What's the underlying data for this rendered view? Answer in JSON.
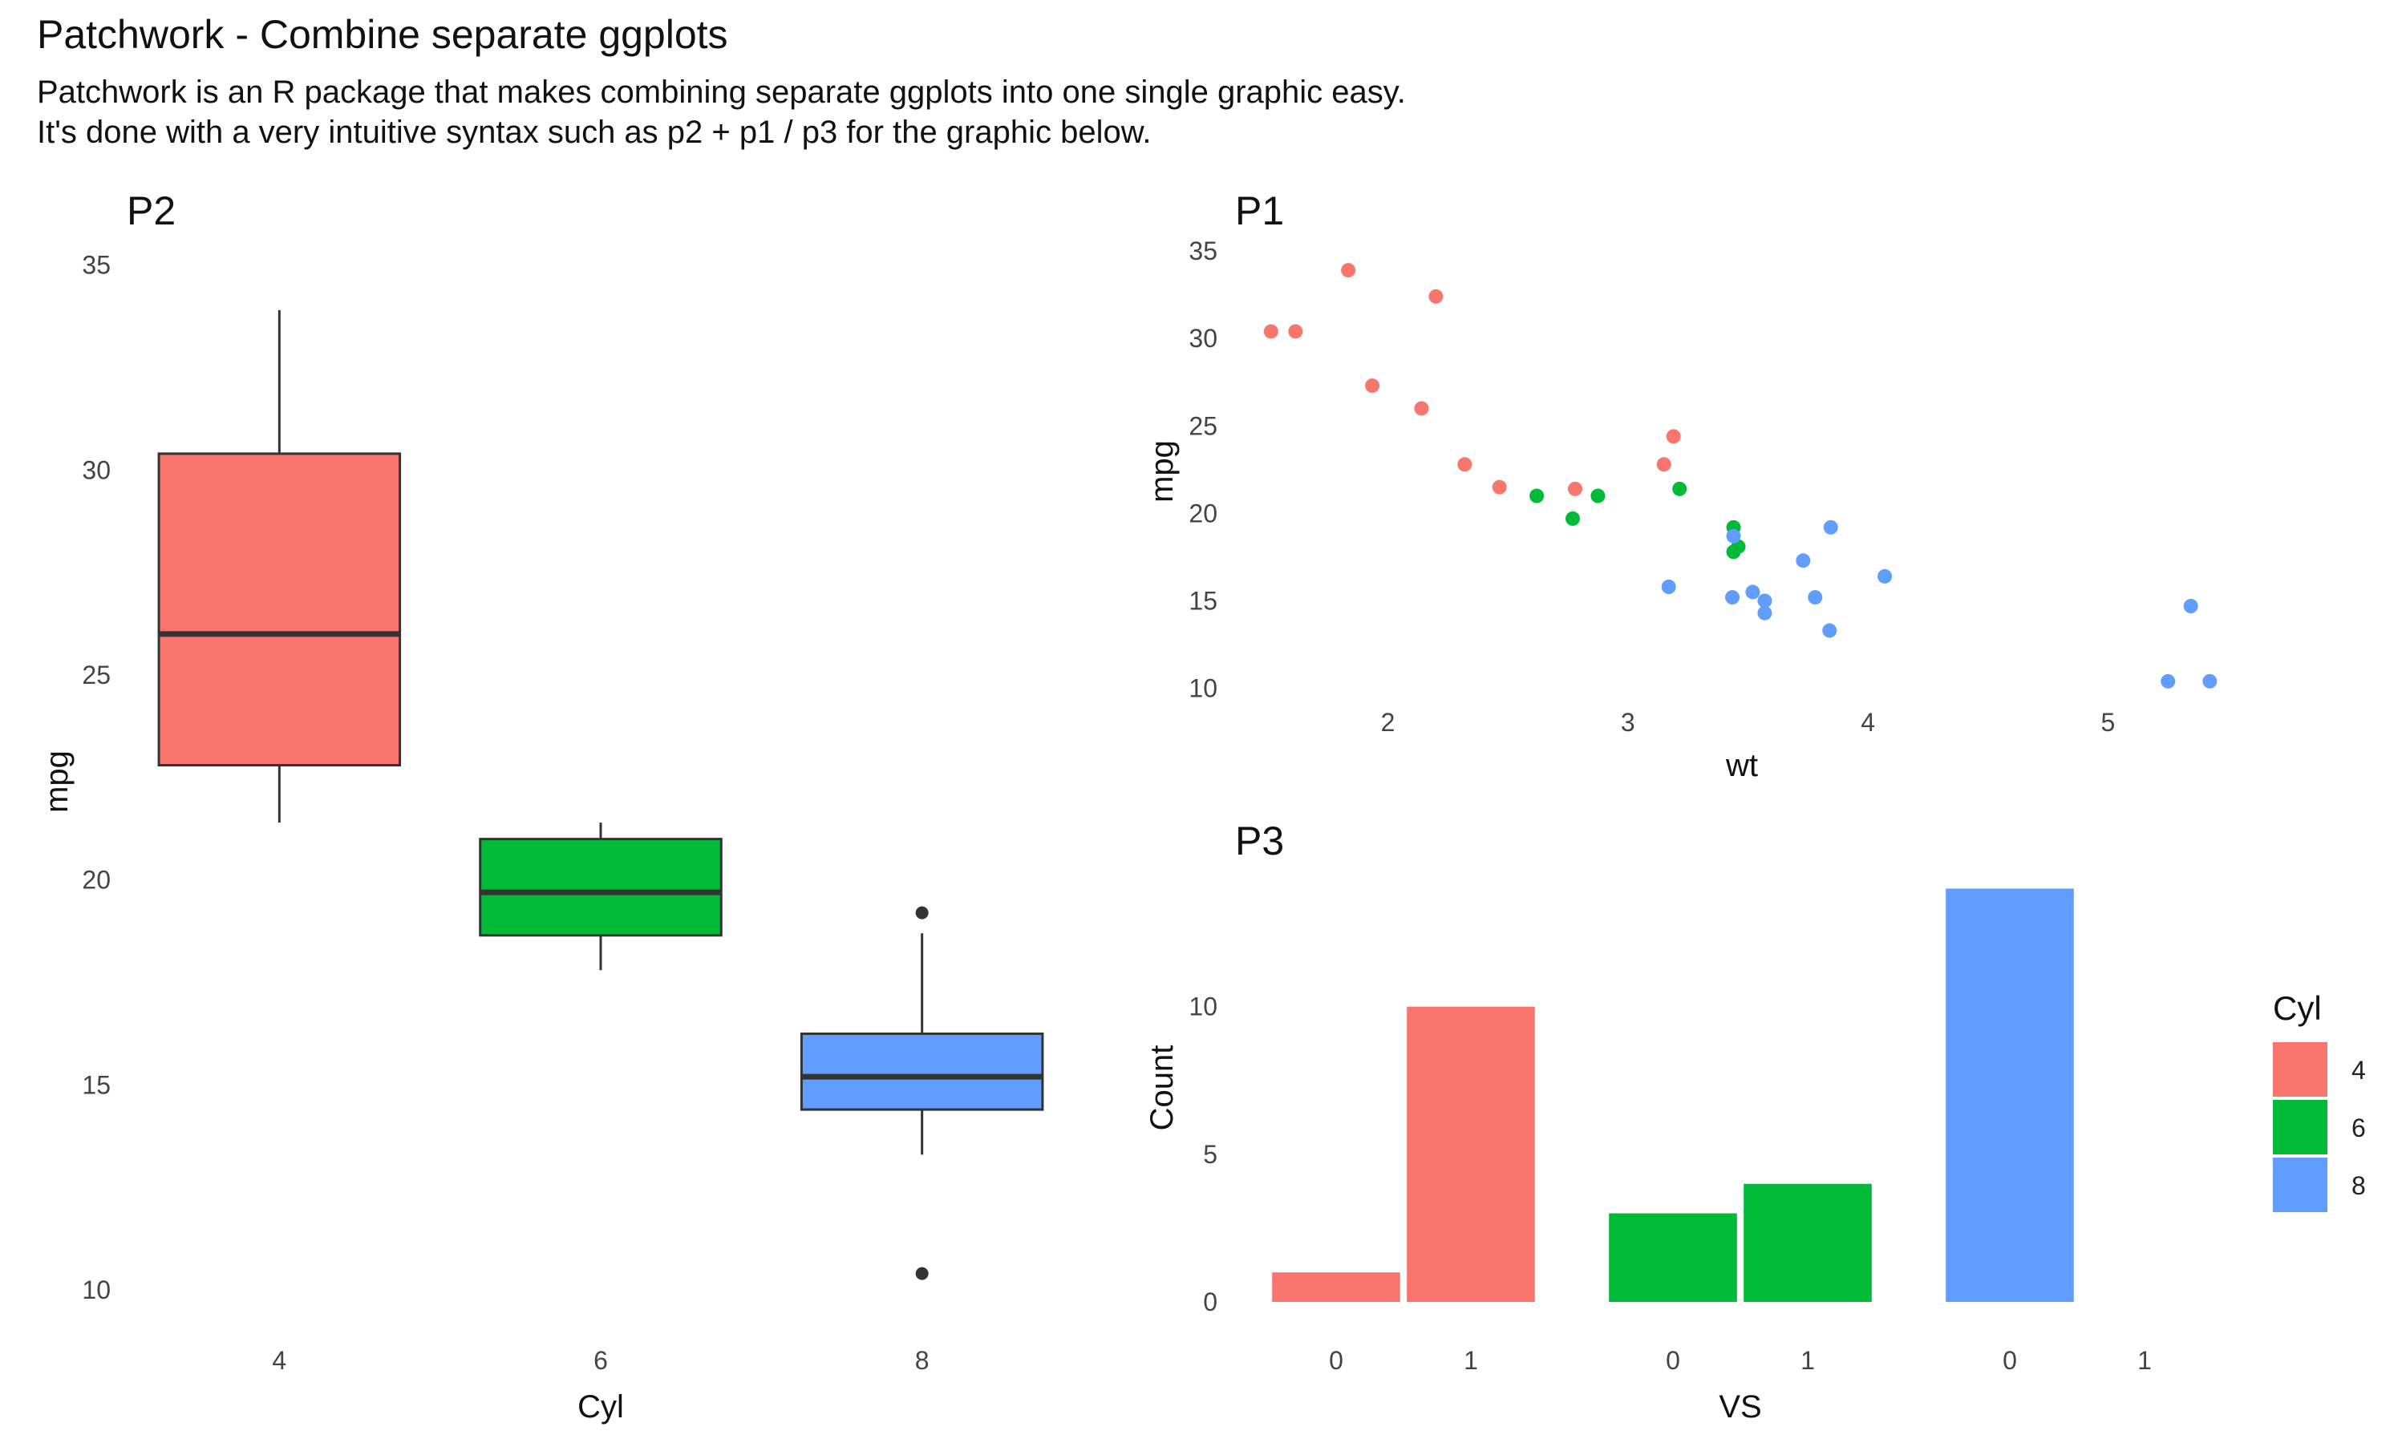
{
  "header": {
    "title": "Patchwork - Combine separate ggplots",
    "subtitle_line1": "Patchwork is an R package that makes combining separate ggplots into one single graphic easy.",
    "subtitle_line2": "It's done with a very intuitive syntax such as p2 + p1 / p3 for the graphic below."
  },
  "colors": {
    "cyl4": "#F8766D",
    "cyl6": "#00BA38",
    "cyl8": "#619CFF",
    "outline": "#333333"
  },
  "chart_data": [
    {
      "id": "p2",
      "type": "box",
      "title": "P2",
      "xlabel": "Cyl",
      "ylabel": "mpg",
      "categories": [
        "4",
        "6",
        "8"
      ],
      "ylim": [
        9.2,
        35.6
      ],
      "yticks": [
        10,
        15,
        20,
        25,
        30,
        35
      ],
      "boxes": [
        {
          "category": "4",
          "min": 21.4,
          "q1": 22.8,
          "median": 26.0,
          "q3": 30.4,
          "max": 33.9,
          "outliers": []
        },
        {
          "category": "6",
          "min": 17.8,
          "q1": 18.65,
          "median": 19.7,
          "q3": 21.0,
          "max": 21.4,
          "outliers": []
        },
        {
          "category": "8",
          "min": 13.3,
          "q1": 14.4,
          "median": 15.2,
          "q3": 16.25,
          "max": 18.7,
          "outliers": [
            10.4,
            19.2
          ]
        }
      ]
    },
    {
      "id": "p1",
      "type": "scatter",
      "title": "P1",
      "xlabel": "wt",
      "ylabel": "mpg",
      "xlim": [
        1.35,
        5.6
      ],
      "ylim": [
        9.2,
        35.6
      ],
      "xticks": [
        2,
        3,
        4,
        5
      ],
      "yticks": [
        10,
        15,
        20,
        25,
        30,
        35
      ],
      "series": [
        {
          "cyl": "4",
          "points": [
            [
              2.32,
              22.8
            ],
            [
              3.19,
              24.4
            ],
            [
              3.15,
              22.8
            ],
            [
              2.2,
              32.4
            ],
            [
              1.615,
              30.4
            ],
            [
              1.835,
              33.9
            ],
            [
              2.465,
              21.5
            ],
            [
              1.935,
              27.3
            ],
            [
              2.14,
              26.0
            ],
            [
              1.513,
              30.4
            ],
            [
              2.78,
              21.4
            ]
          ]
        },
        {
          "cyl": "6",
          "points": [
            [
              2.62,
              21.0
            ],
            [
              2.875,
              21.0
            ],
            [
              3.215,
              21.4
            ],
            [
              3.46,
              18.1
            ],
            [
              3.44,
              19.2
            ],
            [
              3.44,
              17.8
            ],
            [
              2.77,
              19.7
            ]
          ]
        },
        {
          "cyl": "8",
          "points": [
            [
              3.44,
              18.7
            ],
            [
              3.57,
              14.3
            ],
            [
              4.07,
              16.4
            ],
            [
              3.73,
              17.3
            ],
            [
              3.78,
              15.2
            ],
            [
              5.25,
              10.4
            ],
            [
              5.424,
              10.4
            ],
            [
              5.345,
              14.7
            ],
            [
              3.52,
              15.5
            ],
            [
              3.435,
              15.2
            ],
            [
              3.84,
              13.3
            ],
            [
              3.845,
              19.2
            ],
            [
              3.17,
              15.8
            ],
            [
              3.57,
              15.0
            ]
          ]
        }
      ]
    },
    {
      "id": "p3",
      "type": "bar",
      "title": "P3",
      "xlabel": "VS",
      "ylabel": "Count",
      "ylim": [
        0,
        14.5
      ],
      "yticks": [
        0,
        5,
        10
      ],
      "bars": [
        {
          "cyl": "4",
          "vs": "0",
          "value": 1
        },
        {
          "cyl": "4",
          "vs": "1",
          "value": 10
        },
        {
          "cyl": "6",
          "vs": "0",
          "value": 3
        },
        {
          "cyl": "6",
          "vs": "1",
          "value": 4
        },
        {
          "cyl": "8",
          "vs": "0",
          "value": 14
        },
        {
          "cyl": "8",
          "vs": "1",
          "value": 0
        }
      ]
    }
  ],
  "legend": {
    "title": "Cyl",
    "position": "right",
    "items": [
      {
        "label": "4",
        "color": "#F8766D"
      },
      {
        "label": "6",
        "color": "#00BA38"
      },
      {
        "label": "8",
        "color": "#619CFF"
      }
    ]
  }
}
